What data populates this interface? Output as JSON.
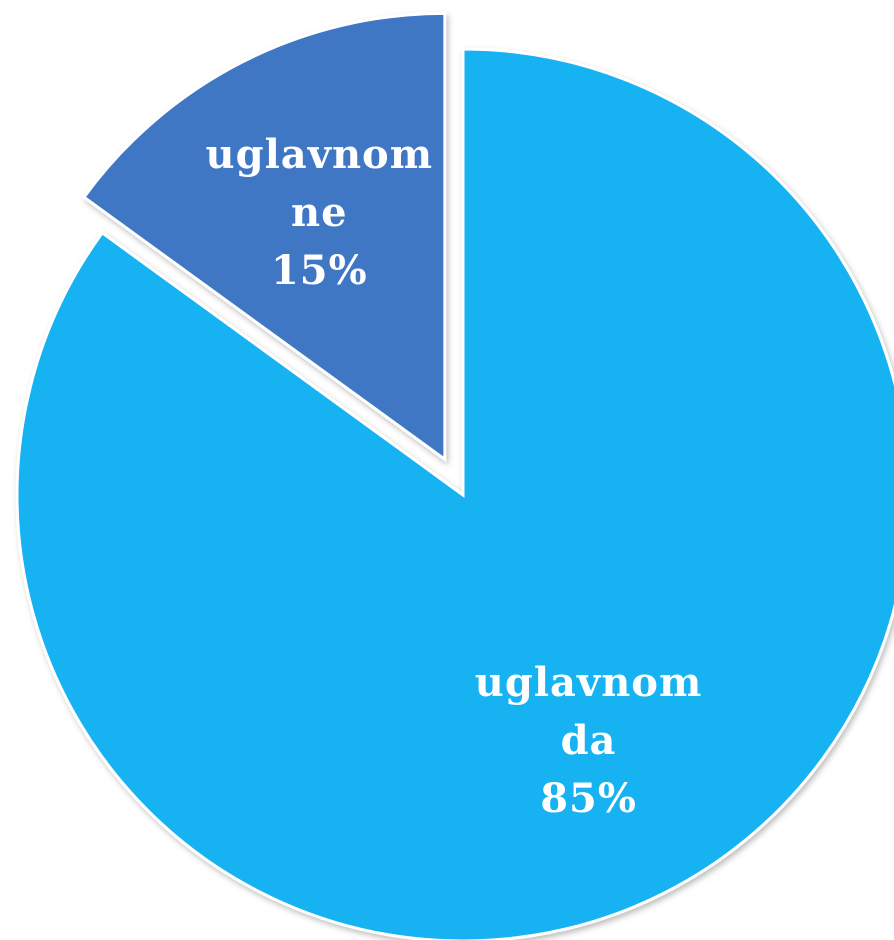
{
  "chart_data": {
    "type": "pie",
    "categories": [
      "uglavnom da",
      "uglavnom ne"
    ],
    "values": [
      85,
      15
    ],
    "value_labels": [
      "85%",
      "15%"
    ],
    "colors": [
      "#12b2f2",
      "#3f77c5"
    ]
  }
}
